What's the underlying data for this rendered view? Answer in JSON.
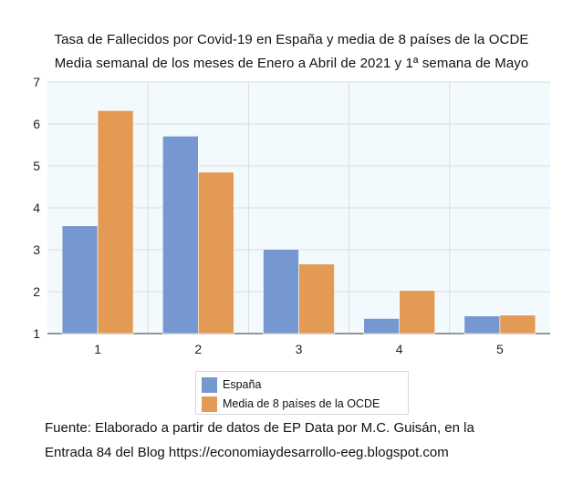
{
  "chart_data": {
    "type": "bar",
    "title": "Tasa de Fallecidos por Covid-19 en España y media de 8 países de la OCDE",
    "subtitle": "Media semanal de los meses de Enero a Abril de 2021 y 1ª semana de Mayo",
    "categories": [
      "1",
      "2",
      "3",
      "4",
      "5"
    ],
    "series": [
      {
        "name": "España",
        "values": [
          3.57,
          5.71,
          3.01,
          1.36,
          1.42
        ],
        "color": "#7598d0"
      },
      {
        "name": "Media de 8 países de la OCDE",
        "values": [
          6.32,
          4.85,
          2.66,
          2.03,
          1.44
        ],
        "color": "#e39a55"
      }
    ],
    "ylim": [
      1,
      7
    ],
    "yticks": [
      "1",
      "2",
      "3",
      "4",
      "5",
      "6",
      "7"
    ],
    "grid": true,
    "legend": "bottom",
    "background": "#f3fafd"
  },
  "footer": {
    "line1": "Fuente: Elaborado a partir de datos de EP Data por M.C. Guisán, en la",
    "line2": "Entrada 84 del Blog https://economiaydesarrollo-eeg.blogspot.com"
  }
}
